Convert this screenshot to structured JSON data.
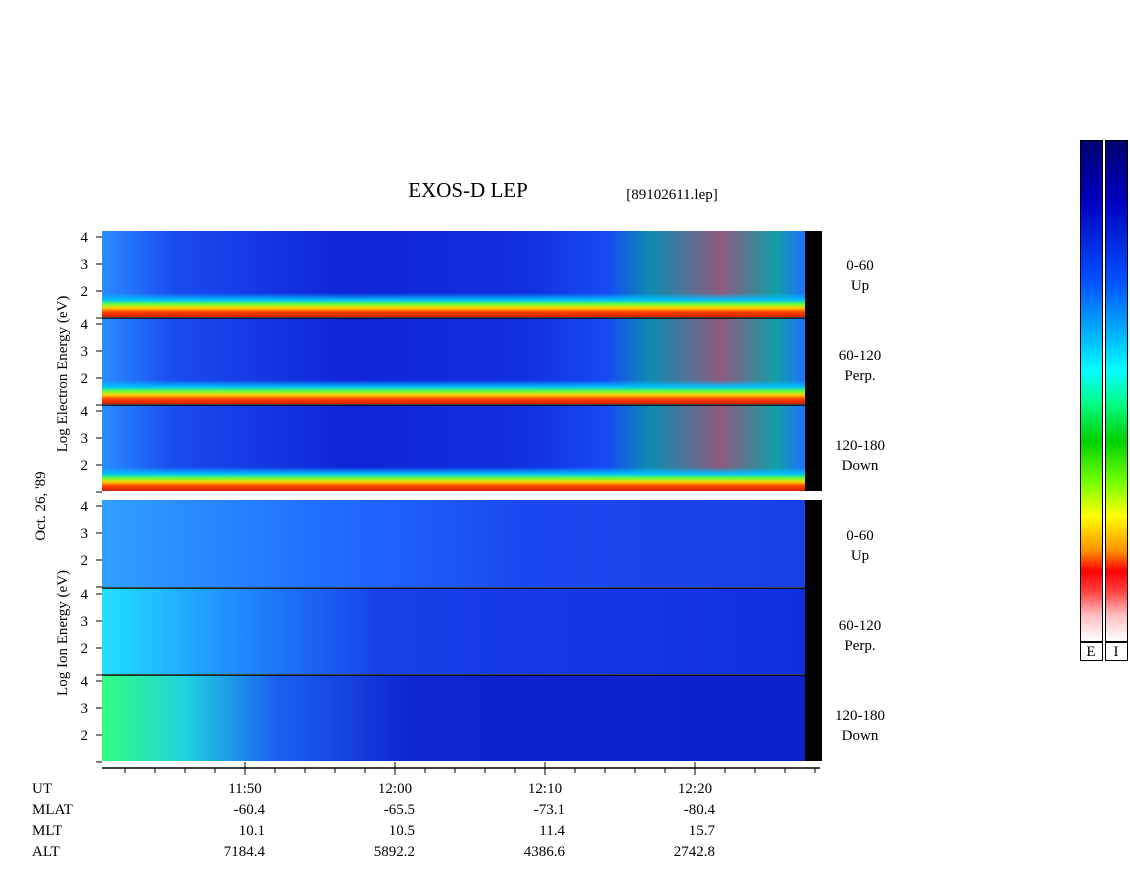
{
  "header": {
    "title": "EXOS-D LEP",
    "file": "[89102611.lep]"
  },
  "left_labels": {
    "electron": "Log  Electron  Energy  (eV)",
    "date": "Oct. 26, '89",
    "ion": "Log  Ion  Energy  (eV)"
  },
  "yticks": [
    4,
    3,
    2
  ],
  "panels": [
    {
      "range": "0-60",
      "dir": "Up"
    },
    {
      "range": "60-120",
      "dir": "Perp."
    },
    {
      "range": "120-180",
      "dir": "Down"
    }
  ],
  "ephemeris": {
    "row_names": [
      "UT",
      "MLAT",
      "MLT",
      "ALT"
    ],
    "columns": [
      [
        "11:50",
        "-60.4",
        "10.1",
        "7184.4"
      ],
      [
        "12:00",
        "-65.5",
        "10.5",
        "5892.2"
      ],
      [
        "12:10",
        "-73.1",
        "11.4",
        "4386.6"
      ],
      [
        "12:20",
        "-80.4",
        "15.7",
        "2742.8"
      ]
    ]
  },
  "colorbars": [
    "E",
    "I"
  ]
}
